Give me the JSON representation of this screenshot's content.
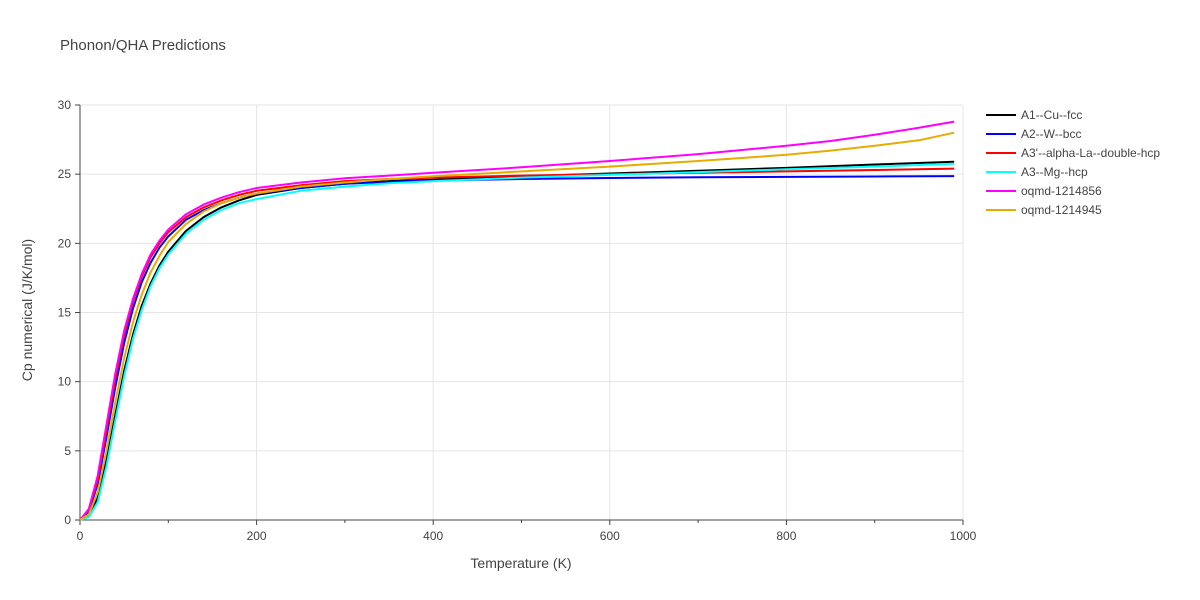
{
  "chart_data": {
    "type": "line",
    "title": "Phonon/QHA Predictions",
    "xlabel": "Temperature (K)",
    "ylabel": "Cp numerical (J/K/mol)",
    "xlim": [
      0,
      1000
    ],
    "ylim": [
      0,
      30
    ],
    "xticks": [
      0,
      200,
      400,
      600,
      800,
      1000
    ],
    "yticks": [
      0,
      5,
      10,
      15,
      20,
      25,
      30
    ],
    "grid": true,
    "legend_position": "right",
    "series": [
      {
        "name": "A1--Cu--fcc",
        "color": "#000000",
        "x": [
          0,
          10,
          20,
          30,
          40,
          50,
          60,
          70,
          80,
          90,
          100,
          120,
          140,
          160,
          180,
          200,
          250,
          300,
          350,
          400,
          500,
          600,
          700,
          800,
          900,
          990
        ],
        "y": [
          0,
          0.3,
          1.6,
          4.3,
          7.6,
          10.8,
          13.4,
          15.5,
          17.1,
          18.4,
          19.4,
          20.9,
          21.9,
          22.6,
          23.1,
          23.5,
          24.0,
          24.3,
          24.5,
          24.6,
          24.85,
          25.05,
          25.25,
          25.45,
          25.7,
          25.9
        ]
      },
      {
        "name": "A2--W--bcc",
        "color": "#0000ff",
        "x": [
          0,
          10,
          20,
          30,
          40,
          50,
          60,
          70,
          80,
          90,
          100,
          120,
          140,
          160,
          180,
          200,
          250,
          300,
          350,
          400,
          500,
          600,
          700,
          800,
          900,
          990
        ],
        "y": [
          0,
          0.6,
          2.6,
          6.0,
          9.6,
          12.8,
          15.3,
          17.2,
          18.6,
          19.7,
          20.5,
          21.7,
          22.4,
          22.9,
          23.3,
          23.6,
          24.0,
          24.3,
          24.45,
          24.55,
          24.65,
          24.72,
          24.77,
          24.8,
          24.83,
          24.86
        ]
      },
      {
        "name": "A3'--alpha-La--double-hcp",
        "color": "#ff0000",
        "x": [
          0,
          10,
          20,
          30,
          40,
          50,
          60,
          70,
          80,
          90,
          100,
          120,
          140,
          160,
          180,
          200,
          250,
          300,
          350,
          400,
          500,
          600,
          700,
          800,
          900,
          990
        ],
        "y": [
          0,
          0.7,
          2.9,
          6.5,
          10.2,
          13.4,
          15.8,
          17.6,
          19.0,
          20.0,
          20.8,
          21.9,
          22.6,
          23.1,
          23.5,
          23.8,
          24.2,
          24.5,
          24.65,
          24.75,
          24.9,
          25.0,
          25.1,
          25.2,
          25.3,
          25.4
        ]
      },
      {
        "name": "A3--Mg--hcp",
        "color": "#00ffff",
        "x": [
          0,
          10,
          20,
          30,
          40,
          50,
          60,
          70,
          80,
          90,
          100,
          120,
          140,
          160,
          180,
          200,
          250,
          300,
          350,
          400,
          500,
          600,
          700,
          800,
          900,
          990
        ],
        "y": [
          0,
          0.2,
          1.3,
          3.9,
          7.2,
          10.4,
          13.1,
          15.2,
          16.9,
          18.2,
          19.2,
          20.7,
          21.7,
          22.4,
          22.9,
          23.2,
          23.8,
          24.1,
          24.35,
          24.5,
          24.75,
          24.95,
          25.15,
          25.35,
          25.55,
          25.75
        ]
      },
      {
        "name": "oqmd-1214856",
        "color": "#ff00ff",
        "x": [
          0,
          10,
          20,
          30,
          40,
          50,
          60,
          70,
          80,
          90,
          100,
          120,
          140,
          160,
          180,
          200,
          250,
          300,
          350,
          400,
          500,
          600,
          700,
          800,
          850,
          900,
          950,
          990
        ],
        "y": [
          0,
          0.8,
          3.2,
          6.9,
          10.6,
          13.7,
          16.0,
          17.8,
          19.2,
          20.2,
          21.0,
          22.1,
          22.8,
          23.3,
          23.7,
          24.0,
          24.4,
          24.7,
          24.9,
          25.1,
          25.5,
          25.95,
          26.45,
          27.05,
          27.4,
          27.85,
          28.35,
          28.8
        ]
      },
      {
        "name": "oqmd-1214945",
        "color": "#e6ac00",
        "x": [
          0,
          10,
          20,
          30,
          40,
          50,
          60,
          70,
          80,
          90,
          100,
          120,
          140,
          160,
          180,
          200,
          250,
          300,
          350,
          400,
          500,
          600,
          700,
          800,
          850,
          900,
          950,
          990
        ],
        "y": [
          0,
          0.4,
          2.0,
          5.0,
          8.5,
          11.7,
          14.3,
          16.3,
          17.9,
          19.1,
          20.1,
          21.4,
          22.3,
          22.9,
          23.3,
          23.6,
          24.1,
          24.4,
          24.65,
          24.85,
          25.2,
          25.55,
          25.95,
          26.4,
          26.7,
          27.05,
          27.45,
          28.0
        ]
      }
    ]
  }
}
